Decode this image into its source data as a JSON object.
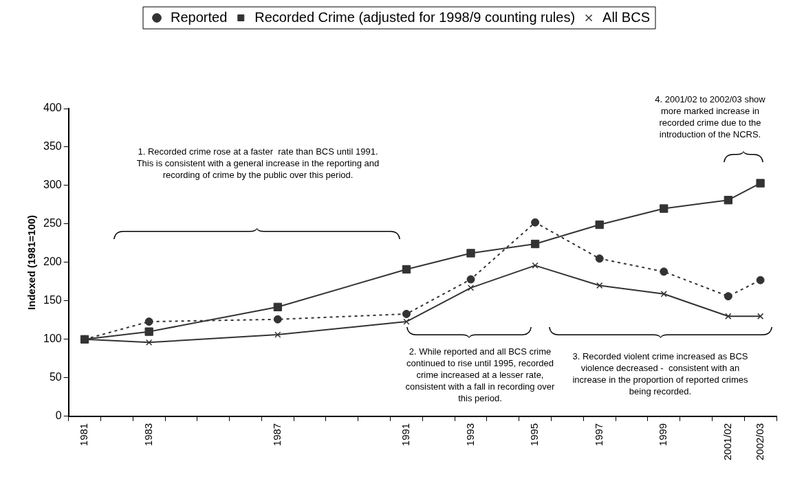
{
  "chart_data": {
    "type": "line",
    "ylabel": "Indexed (1981=100)",
    "categories": [
      "1981",
      null,
      "1983",
      null,
      null,
      null,
      "1987",
      null,
      null,
      null,
      "1991",
      null,
      "1993",
      null,
      "1995",
      null,
      "1997",
      null,
      "1999",
      null,
      "2001/02",
      "2002/03"
    ],
    "series": [
      {
        "name": "Reported",
        "color": "#333333",
        "marker": "circle",
        "line_style": "dotted",
        "values": [
          100,
          null,
          123,
          null,
          null,
          null,
          126,
          null,
          null,
          null,
          133,
          null,
          178,
          null,
          252,
          null,
          205,
          null,
          188,
          null,
          156,
          177
        ]
      },
      {
        "name": "Recorded Crime (adjusted for 1998/9 counting rules)",
        "color": "#333333",
        "marker": "square",
        "line_style": "solid",
        "values": [
          100,
          null,
          110,
          null,
          null,
          null,
          142,
          null,
          null,
          null,
          191,
          null,
          212,
          null,
          224,
          null,
          249,
          null,
          270,
          null,
          281,
          303
        ]
      },
      {
        "name": "All BCS",
        "color": "#333333",
        "marker": "cross",
        "line_style": "solid",
        "values": [
          100,
          null,
          96,
          null,
          null,
          null,
          106,
          null,
          null,
          null,
          123,
          null,
          167,
          null,
          196,
          null,
          170,
          null,
          159,
          null,
          130,
          130
        ]
      }
    ],
    "ylim": [
      0,
      400
    ],
    "yticks": [
      0,
      50,
      100,
      150,
      200,
      250,
      300,
      350,
      400
    ],
    "grid": false,
    "legend": "top",
    "annotations": [
      "1. Recorded crime rose at a faster  rate than BCS until 1991.  This is consistent with a general increase in the reporting and recording of crime by the public over this period.",
      "2. While reported and all BCS crime continued to rise until 1995, recorded crime increased at a lesser rate, consistent with a fall in recording over this period.",
      "3. Recorded violent crime increased as BCS violence decreased -  consistent with an increase in the proportion of reported crimes being recorded.",
      "4. 2001/02 to 2002/03 show more marked increase in recorded crime due to the introduction of the NCRS."
    ]
  }
}
